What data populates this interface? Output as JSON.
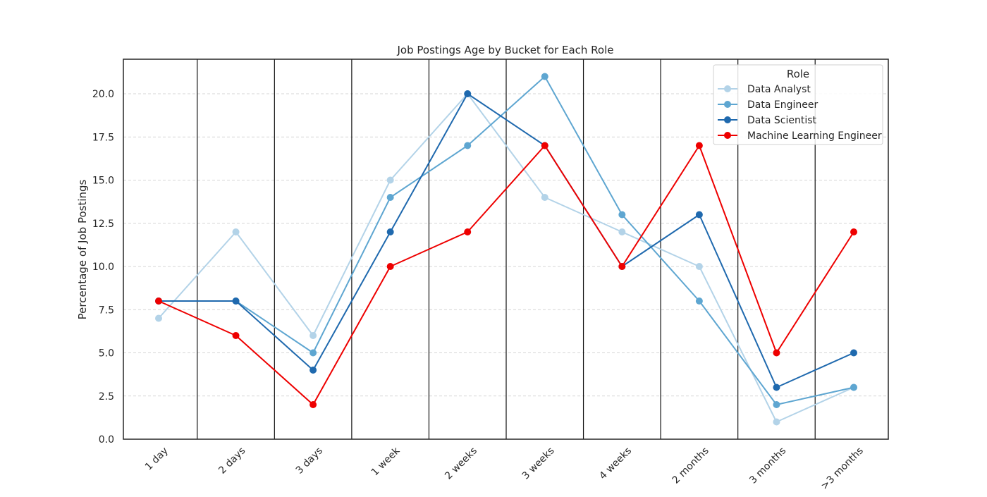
{
  "chart_data": {
    "type": "line",
    "title": "Job Postings Age by Bucket for Each Role",
    "xlabel": "",
    "ylabel": "Percentage of Job Postings",
    "categories": [
      "1 day",
      "2 days",
      "3 days",
      "1 week",
      "2 weeks",
      "3 weeks",
      "4 weeks",
      "2 months",
      "3 months",
      ">3 months"
    ],
    "ylim": [
      0,
      22
    ],
    "yticks": [
      "0.0",
      "2.5",
      "5.0",
      "7.5",
      "10.0",
      "12.5",
      "15.0",
      "17.5",
      "20.0"
    ],
    "grid": "horizontal dashed",
    "legend": {
      "title": "Role",
      "placement": "top-right"
    },
    "series": [
      {
        "name": "Data Analyst",
        "color": "#b3d3e8",
        "values": [
          7,
          12,
          6,
          15,
          20,
          14,
          12,
          10,
          1,
          3
        ]
      },
      {
        "name": "Data Engineer",
        "color": "#5ea6d1",
        "values": [
          8,
          8,
          5,
          14,
          17,
          21,
          13,
          8,
          2,
          3
        ]
      },
      {
        "name": "Data Scientist",
        "color": "#1f69ae",
        "values": [
          8,
          8,
          4,
          12,
          20,
          17,
          10,
          13,
          3,
          5
        ]
      },
      {
        "name": "Machine Learning Engineer",
        "color": "#ee0000",
        "values": [
          8,
          6,
          2,
          10,
          12,
          17,
          10,
          17,
          5,
          12
        ]
      }
    ]
  }
}
